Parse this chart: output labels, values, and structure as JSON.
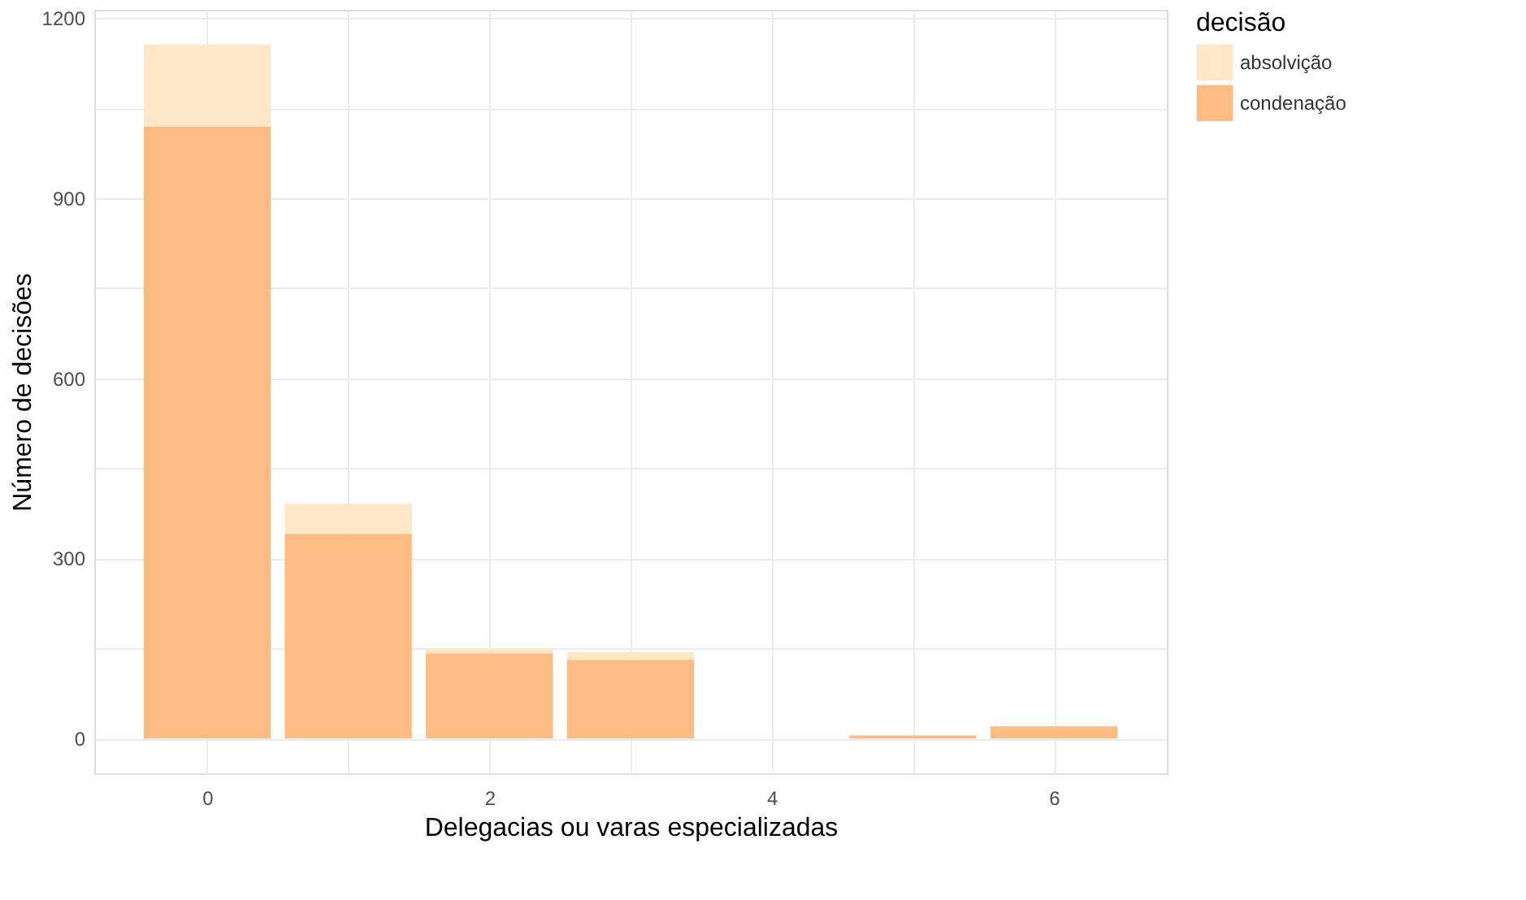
{
  "chart_data": {
    "type": "bar",
    "stacked": true,
    "xlabel": "Delegacias ou varas especializadas",
    "ylabel": "Número de decisões",
    "legend_title": "decisão",
    "x": [
      0,
      1,
      2,
      3,
      5,
      6
    ],
    "series": [
      {
        "name": "condenação",
        "color": "#fdbb84",
        "values": [
          1019,
          341,
          142,
          131,
          5,
          20
        ]
      },
      {
        "name": "absolvição",
        "color": "#fee6c8",
        "values": [
          137,
          50,
          8,
          13,
          0,
          0
        ]
      }
    ],
    "xlim": [
      -0.8,
      6.8
    ],
    "ylim": [
      -58,
      1214
    ],
    "xticks": [
      0,
      {
        "value": 1,
        "label": null
      },
      2,
      {
        "value": 3,
        "label": null
      },
      4,
      {
        "value": 5,
        "label": null
      },
      6
    ],
    "yticks": [
      0,
      {
        "value": 150,
        "label": null
      },
      300,
      {
        "value": 450,
        "label": null
      },
      600,
      {
        "value": 750,
        "label": null
      },
      900,
      {
        "value": 1050,
        "label": null
      },
      1200
    ],
    "grid": true,
    "legend": "right"
  }
}
